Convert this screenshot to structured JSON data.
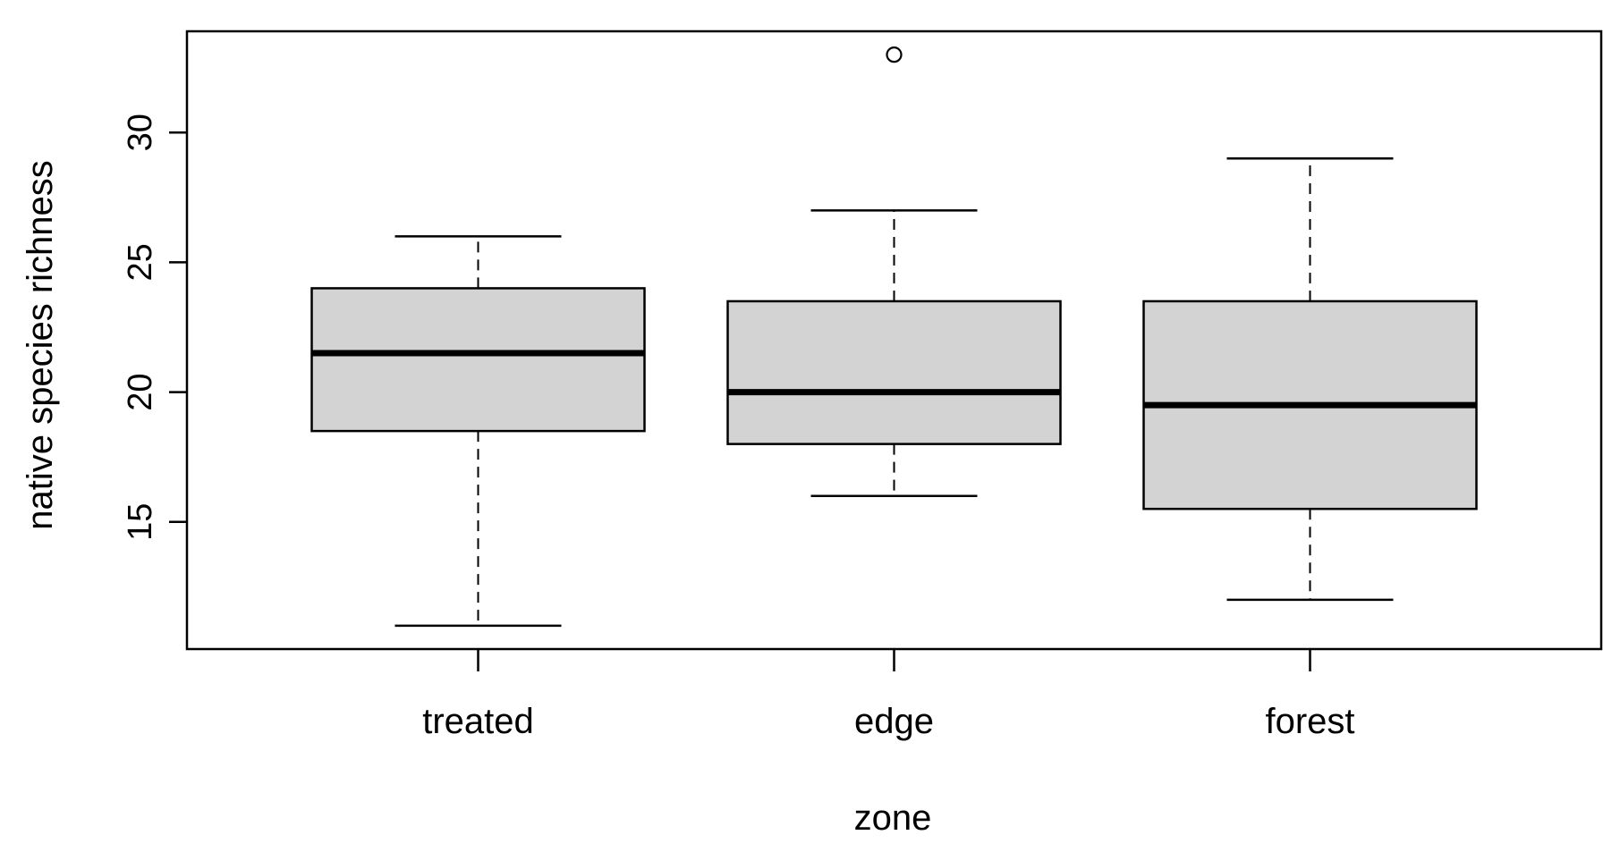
{
  "chart_data": {
    "type": "boxplot",
    "xlabel": "zone",
    "ylabel": "native species richness",
    "categories": [
      "treated",
      "edge",
      "forest"
    ],
    "yticks": [
      15,
      20,
      25,
      30
    ],
    "ylim": [
      10.1,
      33.9
    ],
    "grid": false,
    "box_fill": "#d3d3d3",
    "boxes": [
      {
        "category": "treated",
        "whisker_low": 11,
        "q1": 18.5,
        "median": 21.5,
        "q3": 24,
        "whisker_high": 26,
        "outliers": []
      },
      {
        "category": "edge",
        "whisker_low": 16,
        "q1": 18,
        "median": 20,
        "q3": 23.5,
        "whisker_high": 27,
        "outliers": [
          33
        ]
      },
      {
        "category": "forest",
        "whisker_low": 12,
        "q1": 15.5,
        "median": 19.5,
        "q3": 23.5,
        "whisker_high": 29,
        "outliers": []
      }
    ]
  }
}
